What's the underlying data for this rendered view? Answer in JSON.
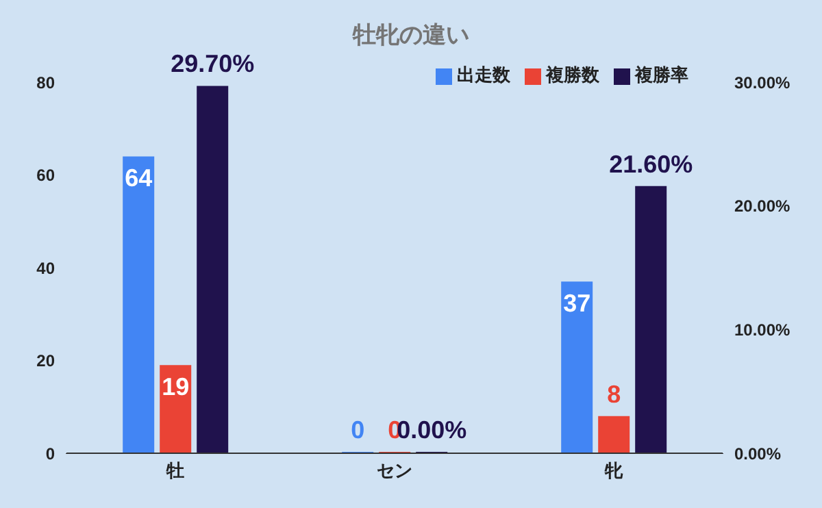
{
  "chart_data": {
    "type": "bar",
    "title": "牡牝の違い",
    "categories": [
      "牡",
      "セン",
      "牝"
    ],
    "series": [
      {
        "name": "出走数",
        "color": "#4285f4",
        "values": [
          64,
          0,
          37
        ],
        "value_labels": [
          "64",
          "0",
          "37"
        ]
      },
      {
        "name": "複勝数",
        "color": "#ea4335",
        "values": [
          19,
          0,
          8
        ],
        "value_labels": [
          "19",
          "0",
          "8"
        ]
      },
      {
        "name": "複勝率",
        "color": "#20124d",
        "values": [
          29.7,
          0,
          21.6
        ],
        "axis": "y2",
        "value_labels": [
          "29.70%",
          "0.00%",
          "21.60%"
        ]
      }
    ],
    "ylim": [
      0,
      80
    ],
    "yticks": [
      0,
      20,
      40,
      60,
      80
    ],
    "y2lim": [
      0,
      30
    ],
    "y2ticks": [
      {
        "value": 0,
        "label": "0.00%"
      },
      {
        "value": 10,
        "label": "10.00%"
      },
      {
        "value": 20,
        "label": "20.00%"
      },
      {
        "value": 30,
        "label": "30.00%"
      }
    ],
    "legend": "top",
    "grid": false
  }
}
